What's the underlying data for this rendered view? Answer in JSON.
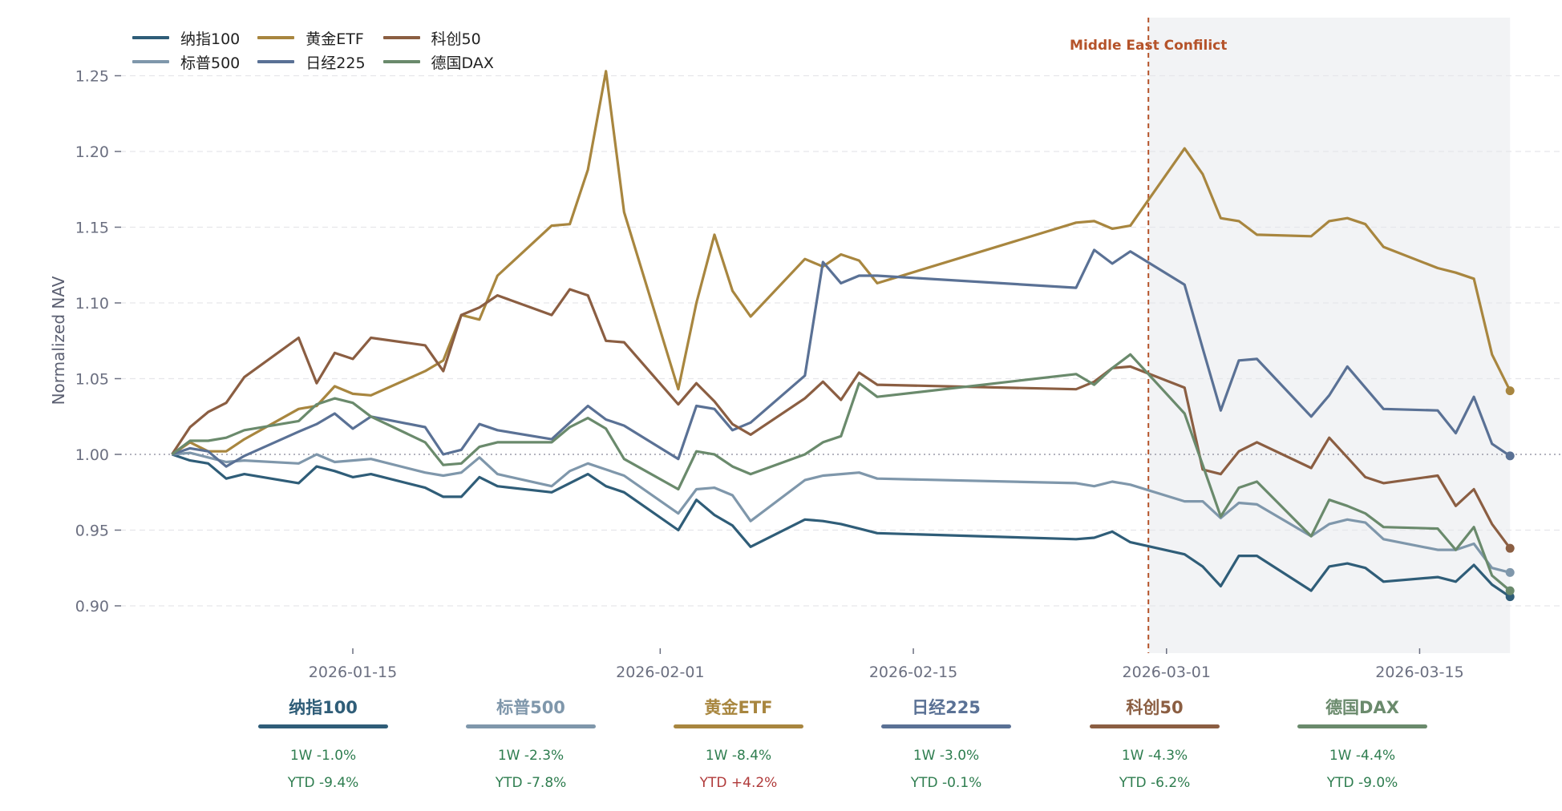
{
  "chart_data": {
    "type": "line",
    "title": "",
    "xlabel": "",
    "ylabel": "Normalized NAV",
    "ylim": [
      0.87,
      1.27
    ],
    "yticks": [
      "0.90",
      "0.95",
      "1.00",
      "1.05",
      "1.10",
      "1.15",
      "1.20",
      "1.25"
    ],
    "ytick_values": [
      0.9,
      0.95,
      1.0,
      1.05,
      1.1,
      1.15,
      1.2,
      1.25
    ],
    "xticks": [
      "2026-01-15",
      "2026-02-01",
      "2026-02-15",
      "2026-03-01",
      "2026-03-15"
    ],
    "xlim": [
      "2026-01-03",
      "2026-03-24"
    ],
    "grid": true,
    "baseline": 1.0,
    "legend_position": "top-left",
    "annotation": {
      "label": "Middle East Confilict",
      "date": "2026-02-28",
      "shaded_from": "2026-02-28",
      "shaded_to": "2026-03-20",
      "color": "#b5532a"
    },
    "x": [
      "2026-01-05",
      "2026-01-06",
      "2026-01-07",
      "2026-01-08",
      "2026-01-09",
      "2026-01-12",
      "2026-01-13",
      "2026-01-14",
      "2026-01-15",
      "2026-01-16",
      "2026-01-19",
      "2026-01-20",
      "2026-01-21",
      "2026-01-22",
      "2026-01-23",
      "2026-01-26",
      "2026-01-27",
      "2026-01-28",
      "2026-01-29",
      "2026-01-30",
      "2026-02-02",
      "2026-02-03",
      "2026-02-04",
      "2026-02-05",
      "2026-02-06",
      "2026-02-09",
      "2026-02-10",
      "2026-02-11",
      "2026-02-12",
      "2026-02-13",
      "2026-02-24",
      "2026-02-25",
      "2026-02-26",
      "2026-02-27",
      "2026-03-02",
      "2026-03-03",
      "2026-03-04",
      "2026-03-05",
      "2026-03-06",
      "2026-03-09",
      "2026-03-10",
      "2026-03-11",
      "2026-03-12",
      "2026-03-13",
      "2026-03-16",
      "2026-03-17",
      "2026-03-18",
      "2026-03-19",
      "2026-03-20"
    ],
    "series": [
      {
        "name": "纳指100",
        "color": "#2f5d78",
        "values": [
          1.0,
          0.996,
          0.994,
          0.984,
          0.987,
          0.981,
          0.992,
          0.989,
          0.985,
          0.987,
          0.978,
          0.972,
          0.972,
          0.985,
          0.979,
          0.975,
          0.981,
          0.987,
          0.979,
          0.975,
          0.95,
          0.97,
          0.96,
          0.953,
          0.939,
          0.957,
          0.956,
          0.954,
          0.951,
          0.948,
          0.944,
          0.945,
          0.949,
          0.942,
          0.934,
          0.926,
          0.913,
          0.933,
          0.933,
          0.91,
          0.926,
          0.928,
          0.925,
          0.916,
          0.919,
          0.916,
          0.927,
          0.914,
          0.906
        ]
      },
      {
        "name": "标普500",
        "color": "#7f97ab",
        "values": [
          1.0,
          1.001,
          0.998,
          0.995,
          0.996,
          0.994,
          1.0,
          0.995,
          0.996,
          0.997,
          0.988,
          0.986,
          0.988,
          0.998,
          0.987,
          0.979,
          0.989,
          0.994,
          0.99,
          0.986,
          0.961,
          0.977,
          0.978,
          0.973,
          0.956,
          0.983,
          0.986,
          0.987,
          0.988,
          0.984,
          0.981,
          0.979,
          0.982,
          0.98,
          0.969,
          0.969,
          0.958,
          0.968,
          0.967,
          0.946,
          0.954,
          0.957,
          0.955,
          0.944,
          0.937,
          0.937,
          0.941,
          0.925,
          0.922
        ]
      },
      {
        "name": "黄金ETF",
        "color": "#a8863f",
        "values": [
          1.0,
          1.008,
          1.002,
          1.002,
          1.01,
          1.03,
          1.032,
          1.045,
          1.04,
          1.039,
          1.055,
          1.062,
          1.092,
          1.089,
          1.118,
          1.151,
          1.152,
          1.188,
          1.253,
          1.16,
          1.043,
          1.1,
          1.145,
          1.108,
          1.091,
          1.129,
          1.124,
          1.132,
          1.128,
          1.113,
          1.153,
          1.154,
          1.149,
          1.151,
          1.202,
          1.185,
          1.156,
          1.154,
          1.145,
          1.144,
          1.154,
          1.156,
          1.152,
          1.137,
          1.123,
          1.12,
          1.116,
          1.066,
          1.042
        ]
      },
      {
        "name": "日经225",
        "color": "#5a7195",
        "values": [
          1.0,
          1.004,
          1.002,
          0.992,
          0.999,
          1.015,
          1.02,
          1.027,
          1.017,
          1.025,
          1.018,
          1.0,
          1.003,
          1.02,
          1.016,
          1.01,
          1.021,
          1.032,
          1.023,
          1.019,
          0.997,
          1.032,
          1.03,
          1.016,
          1.021,
          1.052,
          1.127,
          1.113,
          1.118,
          1.118,
          1.11,
          1.135,
          1.126,
          1.134,
          1.112,
          1.07,
          1.029,
          1.062,
          1.063,
          1.025,
          1.039,
          1.058,
          1.044,
          1.03,
          1.029,
          1.014,
          1.038,
          1.007,
          0.999
        ]
      },
      {
        "name": "科创50",
        "color": "#8b5e42",
        "values": [
          1.0,
          1.018,
          1.028,
          1.034,
          1.051,
          1.077,
          1.047,
          1.067,
          1.063,
          1.077,
          1.072,
          1.055,
          1.092,
          1.097,
          1.105,
          1.092,
          1.109,
          1.105,
          1.075,
          1.074,
          1.033,
          1.047,
          1.035,
          1.02,
          1.013,
          1.037,
          1.048,
          1.036,
          1.054,
          1.046,
          1.043,
          1.048,
          1.057,
          1.058,
          1.044,
          0.99,
          0.987,
          1.002,
          1.008,
          0.991,
          1.011,
          0.998,
          0.985,
          0.981,
          0.986,
          0.966,
          0.977,
          0.954,
          0.938
        ]
      },
      {
        "name": "德国DAX",
        "color": "#6a8a6c",
        "values": [
          1.0,
          1.009,
          1.009,
          1.011,
          1.016,
          1.022,
          1.033,
          1.037,
          1.034,
          1.025,
          1.008,
          0.993,
          0.994,
          1.005,
          1.008,
          1.008,
          1.018,
          1.024,
          1.017,
          0.997,
          0.977,
          1.002,
          1.0,
          0.992,
          0.987,
          1.0,
          1.008,
          1.012,
          1.047,
          1.038,
          1.053,
          1.046,
          1.057,
          1.066,
          1.027,
          0.993,
          0.959,
          0.978,
          0.982,
          0.946,
          0.97,
          0.966,
          0.961,
          0.952,
          0.951,
          0.937,
          0.952,
          0.92,
          0.91
        ]
      }
    ]
  },
  "legend": [
    {
      "label": "纳指100",
      "color": "#2f5d78"
    },
    {
      "label": "黄金ETF",
      "color": "#a8863f"
    },
    {
      "label": "科创50",
      "color": "#8b5e42"
    },
    {
      "label": "标普500",
      "color": "#7f97ab"
    },
    {
      "label": "日经225",
      "color": "#5a7195"
    },
    {
      "label": "德国DAX",
      "color": "#6a8a6c"
    }
  ],
  "cards": [
    {
      "title": "纳指100",
      "color": "#2f5d78",
      "week": "1W -1.0%",
      "ytd": "YTD -9.4%",
      "ytd_color": "#2e7d4f"
    },
    {
      "title": "标普500",
      "color": "#7f97ab",
      "week": "1W -2.3%",
      "ytd": "YTD -7.8%",
      "ytd_color": "#2e7d4f"
    },
    {
      "title": "黄金ETF",
      "color": "#a8863f",
      "week": "1W -8.4%",
      "ytd": "YTD +4.2%",
      "ytd_color": "#b03a3a"
    },
    {
      "title": "日经225",
      "color": "#5a7195",
      "week": "1W -3.0%",
      "ytd": "YTD -0.1%",
      "ytd_color": "#2e7d4f"
    },
    {
      "title": "科创50",
      "color": "#8b5e42",
      "week": "1W -4.3%",
      "ytd": "YTD -6.2%",
      "ytd_color": "#2e7d4f"
    },
    {
      "title": "德国DAX",
      "color": "#6a8a6c",
      "week": "1W -4.4%",
      "ytd": "YTD -9.0%",
      "ytd_color": "#2e7d4f"
    }
  ]
}
